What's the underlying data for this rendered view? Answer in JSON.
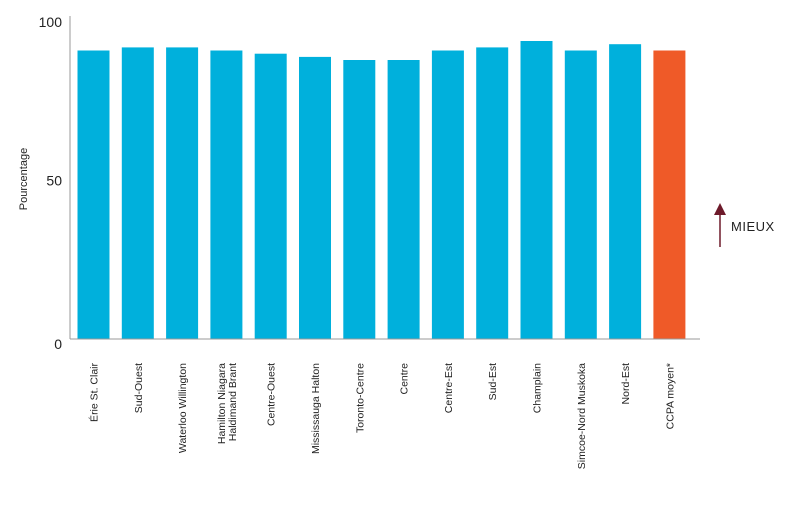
{
  "chart_data": {
    "type": "bar",
    "categories": [
      [
        "Érie St. Clair"
      ],
      [
        "Sud-Ouest"
      ],
      [
        "Waterloo Willington"
      ],
      [
        "Hamilton Niagara",
        "Haldimand Brant"
      ],
      [
        "Centre-Ouest"
      ],
      [
        "Mississauga Halton"
      ],
      [
        "Toronto-Centre"
      ],
      [
        "Centre"
      ],
      [
        "Centre-Est"
      ],
      [
        "Sud-Est"
      ],
      [
        "Champlain"
      ],
      [
        "Simcoe-Nord Muskoka"
      ],
      [
        "Nord-Est"
      ],
      [
        "CCPA moyen*"
      ]
    ],
    "values": [
      91,
      92,
      92,
      91,
      90,
      89,
      88,
      88,
      91,
      92,
      94,
      91,
      93,
      91
    ],
    "highlight_index": 13,
    "ylabel": "Pourcentage",
    "xlabel": "",
    "title": "",
    "ylim": [
      0,
      100
    ],
    "yticks": [
      0,
      50,
      100
    ],
    "grid": false,
    "colors": {
      "bar": "#00b0dc",
      "highlight": "#ef5a28",
      "axis": "#999999",
      "arrow": "#6d1a2a"
    }
  },
  "annotation": {
    "label": "MIEUX",
    "direction": "up"
  }
}
